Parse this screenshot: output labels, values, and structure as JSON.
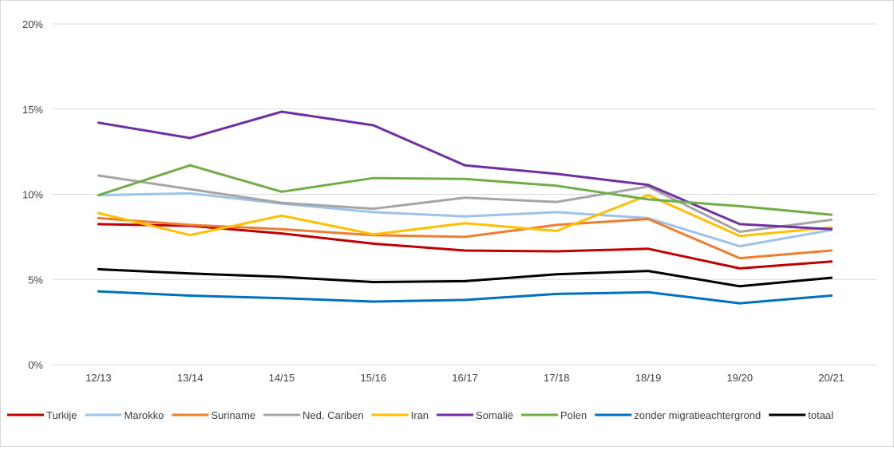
{
  "chart_data": {
    "type": "line",
    "title": "",
    "xlabel": "",
    "ylabel": "",
    "categories": [
      "12/13",
      "13/14",
      "14/15",
      "15/16",
      "16/17",
      "17/18",
      "18/19",
      "19/20",
      "20/21"
    ],
    "ylim": [
      0,
      20
    ],
    "yticks": [
      0,
      5,
      10,
      15,
      20
    ],
    "ytick_labels": [
      "0%",
      "5%",
      "10%",
      "15%",
      "20%"
    ],
    "grid": "horizontal",
    "legend_position": "bottom",
    "series": [
      {
        "name": "Turkije",
        "color": "#c00000",
        "values": [
          8.25,
          8.15,
          7.7,
          7.1,
          6.7,
          6.65,
          6.8,
          5.65,
          6.05
        ]
      },
      {
        "name": "Marokko",
        "color": "#9dc3e6",
        "values": [
          9.95,
          10.05,
          9.45,
          8.95,
          8.7,
          8.95,
          8.6,
          6.95,
          7.9
        ]
      },
      {
        "name": "Suriname",
        "color": "#ed7d31",
        "values": [
          8.6,
          8.2,
          7.95,
          7.6,
          7.5,
          8.2,
          8.55,
          6.25,
          6.7
        ]
      },
      {
        "name": "Ned. Cariben",
        "color": "#a5a5a5",
        "values": [
          11.1,
          10.3,
          9.5,
          9.15,
          9.8,
          9.55,
          10.45,
          7.8,
          8.5
        ]
      },
      {
        "name": "Iran",
        "color": "#ffc000",
        "values": [
          8.9,
          7.6,
          8.75,
          7.65,
          8.3,
          7.85,
          9.95,
          7.55,
          8.05
        ]
      },
      {
        "name": "Somalië",
        "color": "#7030a0",
        "values": [
          14.2,
          13.3,
          14.85,
          14.05,
          11.7,
          11.2,
          10.55,
          8.25,
          7.95
        ]
      },
      {
        "name": "Polen",
        "color": "#70ad47",
        "values": [
          9.95,
          11.7,
          10.15,
          10.95,
          10.9,
          10.5,
          9.7,
          9.3,
          8.8
        ]
      },
      {
        "name": "zonder migratieachtergrond",
        "color": "#0070c0",
        "values": [
          4.3,
          4.05,
          3.9,
          3.7,
          3.8,
          4.15,
          4.25,
          3.6,
          4.05
        ]
      },
      {
        "name": "totaal",
        "color": "#000000",
        "values": [
          5.6,
          5.35,
          5.15,
          4.85,
          4.9,
          5.3,
          5.5,
          4.6,
          5.1
        ]
      }
    ]
  }
}
